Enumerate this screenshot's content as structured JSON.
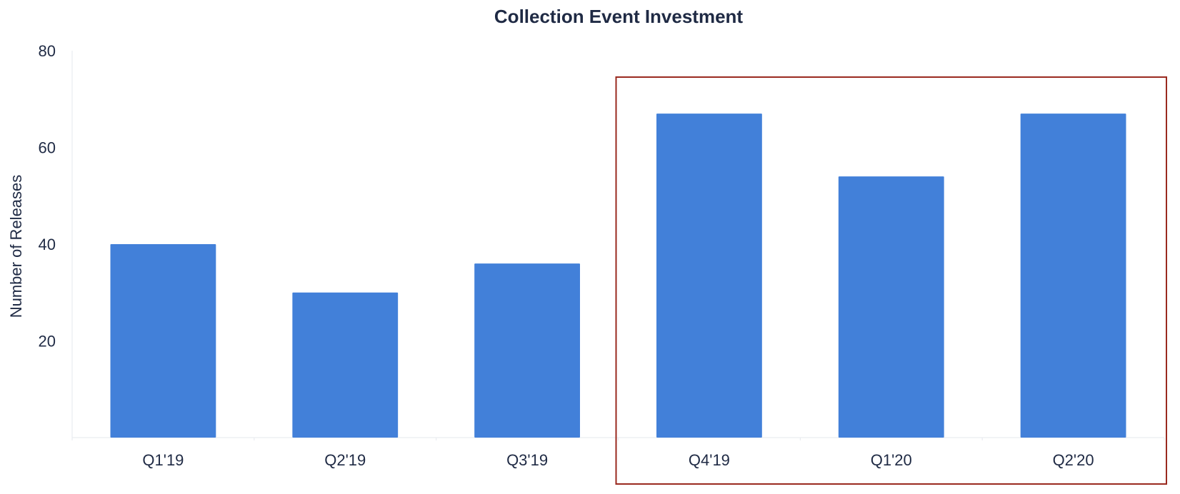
{
  "chart_data": {
    "type": "bar",
    "title": "Collection Event Investment",
    "xlabel": "",
    "ylabel": "Number of Releases",
    "categories": [
      "Q1'19",
      "Q2'19",
      "Q3'19",
      "Q4'19",
      "Q1'20",
      "Q2'20"
    ],
    "values": [
      40,
      30,
      36,
      67,
      54,
      67
    ],
    "ylim": [
      0,
      80
    ],
    "yticks": [
      20,
      40,
      60,
      80
    ],
    "grid": false,
    "highlight": {
      "from_category": "Q4'19",
      "to_category": "Q2'20"
    }
  },
  "colors": {
    "bar": "#4280d9",
    "highlight_border": "#9a2a1f",
    "text": "#1f2a44",
    "axis": "#e6e8ee"
  }
}
